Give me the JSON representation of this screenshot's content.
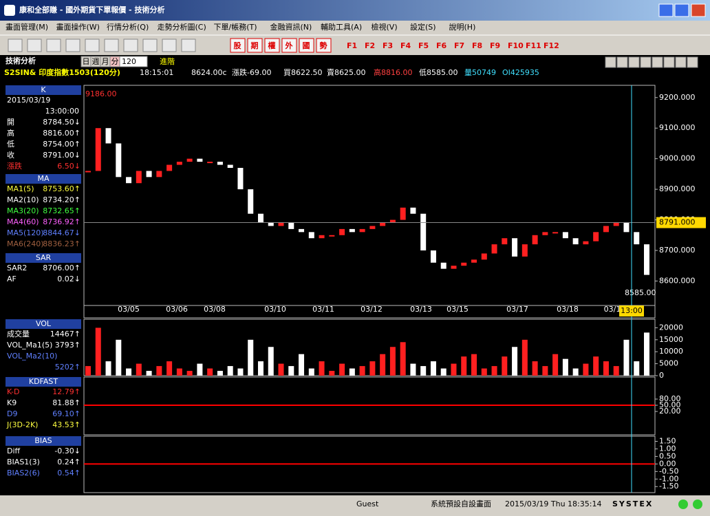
{
  "window": {
    "title": "康和全部賺 - 國外期貨下單報價 - 技術分析"
  },
  "menu": [
    "畫面管理(M)",
    "畫面操作(W)",
    "行情分析(Q)",
    "走勢分析圖(C)",
    "下單/帳務(T)",
    "金融資訊(N)",
    "輔助工具(A)",
    "檢視(V)",
    "設定(S)",
    "說明(H)"
  ],
  "toolbar": {
    "buttons": [
      "股",
      "期",
      "權",
      "外",
      "國",
      "勢"
    ],
    "fkeys": [
      "F1",
      "F2",
      "F3",
      "F4",
      "F5",
      "F6",
      "F7",
      "F8",
      "F9",
      "F10",
      "F11",
      "F12"
    ]
  },
  "panel": {
    "title": "技術分析",
    "periods": [
      "日",
      "週",
      "月",
      "分"
    ],
    "count": "120",
    "advanced": "進階"
  },
  "quote": {
    "symbol": "S2SIN& 印度指數1503(120分)",
    "time": "18:15:01",
    "fields": [
      "8624.00c",
      "漲跌-69.00",
      "買8622.50",
      "賣8625.00",
      "高8816.00",
      "低8585.00",
      "量50749",
      "OI425935"
    ]
  },
  "sidebar": [
    {
      "header": "K",
      "date": "2015/03/19",
      "time": "13:00:00",
      "rows": [
        {
          "label": "開",
          "value": "8784.50↓"
        },
        {
          "label": "高",
          "value": "8816.00↑"
        },
        {
          "label": "低",
          "value": "8754.00↑"
        },
        {
          "label": "收",
          "value": "8791.00↓"
        },
        {
          "label": "漲跌",
          "value": "6.50↓",
          "color": "#ff3030"
        }
      ]
    },
    {
      "header": "MA",
      "rows": [
        {
          "label": "MA1(5)",
          "value": "8753.60↑",
          "color": "#ffff40"
        },
        {
          "label": "MA2(10)",
          "value": "8734.20↑",
          "color": "#ffffff"
        },
        {
          "label": "MA3(20)",
          "value": "8732.65↑",
          "color": "#40ff40"
        },
        {
          "label": "MA4(60)",
          "value": "8736.92↑",
          "color": "#ff60ff"
        },
        {
          "label": "MA5(120)",
          "value": "8844.67↓",
          "color": "#6080ff"
        },
        {
          "label": "MA6(240)",
          "value": "8836.23↑",
          "color": "#a06040"
        }
      ]
    },
    {
      "header": "SAR",
      "rows": [
        {
          "label": "SAR2",
          "value": "8706.00↑"
        },
        {
          "label": "AF",
          "value": "0.02↓"
        }
      ]
    },
    {
      "header": "VOL",
      "rows": [
        {
          "label": "成交量",
          "value": "14467↑"
        },
        {
          "label": "VOL_Ma1(5)",
          "value": "3793↑"
        },
        {
          "label": "VOL_Ma2(10)",
          "value": "5202↑",
          "color": "#6080ff"
        }
      ]
    },
    {
      "header": "KDFAST",
      "rows": [
        {
          "label": "K-D",
          "value": "12.79↑",
          "color": "#ff3030"
        },
        {
          "label": "K9",
          "value": "81.88↑"
        },
        {
          "label": "D9",
          "value": "69.10↑",
          "color": "#6080ff"
        },
        {
          "label": "J(3D-2K)",
          "value": "43.53↑",
          "color": "#ffff40"
        }
      ]
    },
    {
      "header": "BIAS",
      "rows": [
        {
          "label": "Diff",
          "value": "-0.30↓"
        },
        {
          "label": "BIAS1(3)",
          "value": "0.24↑"
        },
        {
          "label": "BIAS2(6)",
          "value": "0.54↑",
          "color": "#6080ff"
        }
      ]
    }
  ],
  "chart": {
    "closes": [
      8960,
      9100,
      9050,
      8940,
      8920,
      8960,
      8940,
      8960,
      8980,
      8990,
      9000,
      8990,
      8990,
      8980,
      8970,
      8900,
      8820,
      8790,
      8780,
      8790,
      8770,
      8760,
      8740,
      8750,
      8750,
      8770,
      8760,
      8770,
      8780,
      8790,
      8800,
      8840,
      8820,
      8700,
      8660,
      8640,
      8650,
      8660,
      8670,
      8690,
      8720,
      8740,
      8680,
      8720,
      8750,
      8760,
      8760,
      8740,
      8720,
      8730,
      8760,
      8780,
      8790,
      8760,
      8720,
      8620
    ],
    "volumes": [
      4000,
      20000,
      6000,
      15000,
      3000,
      5000,
      2000,
      4000,
      6000,
      3000,
      2000,
      5000,
      3000,
      2000,
      4000,
      3000,
      15000,
      6000,
      12000,
      5000,
      4000,
      9000,
      3000,
      6000,
      2000,
      5000,
      3000,
      4000,
      6000,
      9000,
      12000,
      14000,
      5000,
      4000,
      6000,
      3000,
      5000,
      8000,
      9000,
      3000,
      4000,
      8000,
      12000,
      15000,
      6000,
      4000,
      9000,
      7000,
      3000,
      5000,
      8000,
      6000,
      4000,
      15000,
      6000,
      18000
    ],
    "price_lim": [
      8520,
      9240
    ],
    "price_ticks": [
      {
        "value": 9200,
        "label": "9200.000"
      },
      {
        "value": 9100,
        "label": "9100.000"
      },
      {
        "value": 9000,
        "label": "9000.000"
      },
      {
        "value": 8900,
        "label": "8900.000"
      },
      {
        "value": 8800,
        "label": "8800.000"
      },
      {
        "value": 8700,
        "label": "8700.000"
      },
      {
        "value": 8600,
        "label": "8600.000"
      }
    ],
    "high_label": "9186.00",
    "low_label": "8585.00",
    "last": {
      "value": 8791,
      "label": "8791.000"
    },
    "cursor_time": "13:00",
    "dates": [
      "03/05",
      "03/06",
      "03/08",
      "03/10",
      "03/11",
      "03/12",
      "03/13",
      "03/15",
      "03/17",
      "03/18",
      "03/1"
    ],
    "vol_lim": [
      0,
      23000
    ],
    "vol_ticks": [
      20000,
      15000,
      10000,
      5000,
      0
    ],
    "kd_lim": [
      -93,
      180
    ],
    "kd_ticks": [
      {
        "value": 80,
        "label": "80.00"
      },
      {
        "value": 50,
        "label": "50.00"
      },
      {
        "value": 20,
        "label": "20.00"
      }
    ],
    "bias_lim": [
      -1.9,
      1.75
    ],
    "bias_ticks": [
      {
        "value": 1.5,
        "label": "1.50"
      },
      {
        "value": 1,
        "label": "1.00"
      },
      {
        "value": 0.5,
        "label": "0.50"
      },
      {
        "value": 0,
        "label": "0.00"
      },
      {
        "value": -0.5,
        "label": "-0.50"
      },
      {
        "value": -1,
        "label": "-1.00"
      },
      {
        "value": -1.5,
        "label": "-1.50"
      }
    ]
  },
  "status": {
    "user": "Guest",
    "layout": "系統預設自設畫面",
    "datetime": "2015/03/19 Thu 18:35:14",
    "brand": "SYSTEX"
  }
}
